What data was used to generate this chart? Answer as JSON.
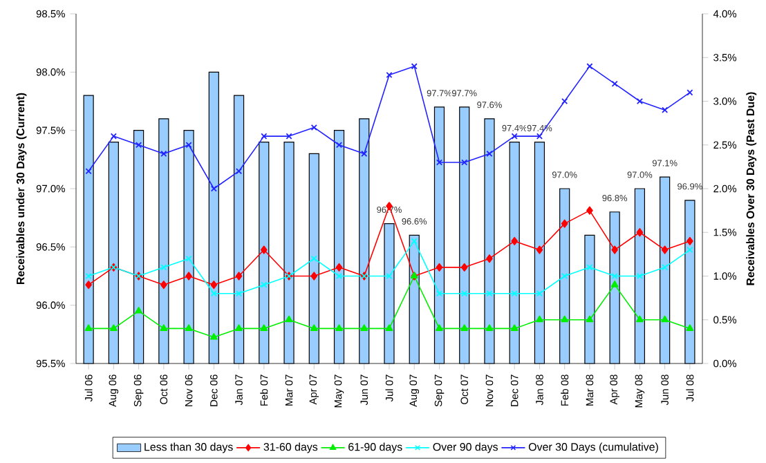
{
  "chart_data": {
    "type": "bar",
    "categories": [
      "Jul 06",
      "Aug 06",
      "Sep 06",
      "Oct 06",
      "Nov 06",
      "Dec 06",
      "Jan 07",
      "Feb 07",
      "Mar 07",
      "Apr 07",
      "May 07",
      "Jun 07",
      "Jul 07",
      "Aug 07",
      "Sep 07",
      "Oct 07",
      "Nov 07",
      "Dec 07",
      "Jan 08",
      "Feb 08",
      "Mar 08",
      "Apr 08",
      "May 08",
      "Jun 08",
      "Jul 08"
    ],
    "ylabel": "Receivables under 30 Days (Current)",
    "y2label": "Receivables Over 30 Days (Past Due)",
    "ylim": [
      95.5,
      98.5
    ],
    "yticks": [
      {
        "value": 95.5,
        "label": "95.5%"
      },
      {
        "value": 96.0,
        "label": "96.0%"
      },
      {
        "value": 96.5,
        "label": "96.5%"
      },
      {
        "value": 97.0,
        "label": "97.0%"
      },
      {
        "value": 97.5,
        "label": "97.5%"
      },
      {
        "value": 98.0,
        "label": "98.0%"
      },
      {
        "value": 98.5,
        "label": "98.5%"
      }
    ],
    "y2lim": [
      0,
      4
    ],
    "y2ticks": [
      {
        "value": 0,
        "label": "0.0%"
      },
      {
        "value": 0.5,
        "label": "0.5%"
      },
      {
        "value": 1.0,
        "label": "1.0%"
      },
      {
        "value": 1.5,
        "label": "1.5%"
      },
      {
        "value": 2.0,
        "label": "2.0%"
      },
      {
        "value": 2.5,
        "label": "2.5%"
      },
      {
        "value": 3.0,
        "label": "3.0%"
      },
      {
        "value": 3.5,
        "label": "3.5%"
      },
      {
        "value": 4.0,
        "label": "4.0%"
      }
    ],
    "legend": "bottom",
    "series": [
      {
        "name": "Less than 30 days",
        "type": "bar",
        "color": "#99ccff",
        "values": [
          97.8,
          97.4,
          97.5,
          97.6,
          97.5,
          98.0,
          97.8,
          97.4,
          97.4,
          97.3,
          97.5,
          97.6,
          96.7,
          96.6,
          97.7,
          97.7,
          97.6,
          97.4,
          97.4,
          97.0,
          96.6,
          96.8,
          97.0,
          97.1,
          96.9
        ],
        "value_labels": [
          null,
          null,
          null,
          null,
          null,
          null,
          null,
          null,
          null,
          null,
          null,
          null,
          "96.7%",
          "96.6%",
          "97.7%",
          "97.7%",
          "97.6%",
          "97.4%",
          "97.4%",
          "97.0%",
          null,
          "96.8%",
          "97.0%",
          "97.1%",
          "96.9%"
        ]
      },
      {
        "name": "31-60 days",
        "type": "line",
        "axis": "y2",
        "color": "#ff0000",
        "marker": "diamond",
        "values": [
          0.9,
          1.1,
          1.0,
          0.9,
          1.0,
          0.9,
          1.0,
          1.3,
          1.0,
          1.0,
          1.1,
          1.0,
          1.8,
          1.0,
          1.1,
          1.1,
          1.2,
          1.4,
          1.3,
          1.6,
          1.75,
          1.3,
          1.5,
          1.3,
          1.4
        ]
      },
      {
        "name": "61-90 days",
        "type": "line",
        "axis": "y2",
        "color": "#00ee00",
        "marker": "triangle",
        "values": [
          0.4,
          0.4,
          0.6,
          0.4,
          0.4,
          0.3,
          0.4,
          0.4,
          0.5,
          0.4,
          0.4,
          0.4,
          0.4,
          1.0,
          0.4,
          0.4,
          0.4,
          0.4,
          0.5,
          0.5,
          0.5,
          0.9,
          0.5,
          0.5,
          0.4
        ]
      },
      {
        "name": "Over 90 days",
        "type": "line",
        "axis": "y2",
        "color": "#00ffff",
        "marker": "cross",
        "values": [
          1.0,
          1.1,
          1.0,
          1.1,
          1.2,
          0.8,
          0.8,
          0.9,
          1.0,
          1.2,
          1.0,
          1.0,
          1.0,
          1.4,
          0.8,
          0.8,
          0.8,
          0.8,
          0.8,
          1.0,
          1.1,
          1.0,
          1.0,
          1.1,
          1.3
        ]
      },
      {
        "name": "Over 30 Days (cumulative)",
        "type": "line",
        "axis": "y2",
        "color": "#2222ff",
        "marker": "cross",
        "values": [
          2.2,
          2.6,
          2.5,
          2.4,
          2.5,
          2.0,
          2.2,
          2.6,
          2.6,
          2.7,
          2.5,
          2.4,
          3.3,
          3.4,
          2.3,
          2.3,
          2.4,
          2.6,
          2.6,
          3.0,
          3.4,
          3.2,
          3.0,
          2.9,
          3.1
        ]
      }
    ]
  }
}
